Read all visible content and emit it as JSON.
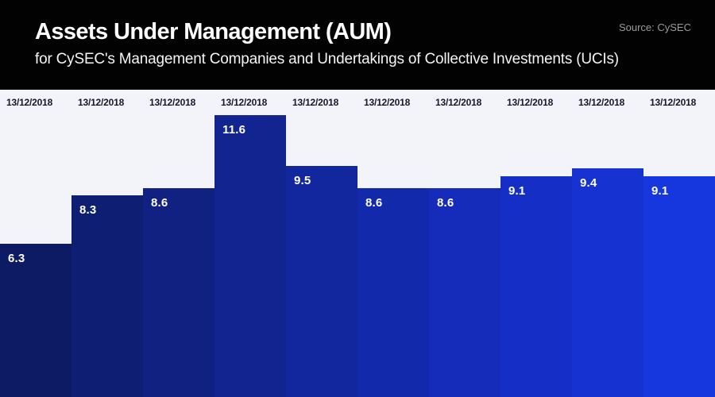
{
  "header": {
    "title": "Assets Under Management (AUM)",
    "subtitle": "for CySEC's Management Companies and Undertakings of Collective Investments (UCIs)",
    "source": "Source: CySEC"
  },
  "colors": {
    "header_bg": "#020202",
    "chart_bg": "#f3f4f9",
    "title_text": "#ffffff",
    "source_text": "#9a9a9a",
    "date_text": "#16172b",
    "value_text": "#ffffff",
    "bar_palette": [
      "#0d1b64",
      "#0e1e72",
      "#102181",
      "#11248f",
      "#12279d",
      "#1329ab",
      "#142cb9",
      "#152fc6",
      "#1633d2",
      "#1637dd"
    ]
  },
  "chart_data": {
    "type": "bar",
    "title": "Assets Under Management (AUM)",
    "subtitle": "for CySEC's Management Companies and Undertakings of Collective Investments (UCIs)",
    "source": "Source: CySEC",
    "categories": [
      "13/12/2018",
      "13/12/2018",
      "13/12/2018",
      "13/12/2018",
      "13/12/2018",
      "13/12/2018",
      "13/12/2018",
      "13/12/2018",
      "13/12/2018",
      "13/12/2018"
    ],
    "values": [
      6.3,
      8.3,
      8.6,
      11.6,
      9.5,
      8.6,
      8.6,
      9.1,
      9.4,
      9.1
    ],
    "xlabel": "",
    "ylabel": "",
    "ylim": [
      0,
      12.65
    ],
    "grid": false,
    "legend": false,
    "value_label_position": "inside-top-left",
    "category_label_position": "above-bars-top-left",
    "bar_colors": [
      "#0d1b64",
      "#0e1e72",
      "#102181",
      "#11248f",
      "#12279d",
      "#1329ab",
      "#142cb9",
      "#152fc6",
      "#1633d2",
      "#1637dd"
    ]
  }
}
